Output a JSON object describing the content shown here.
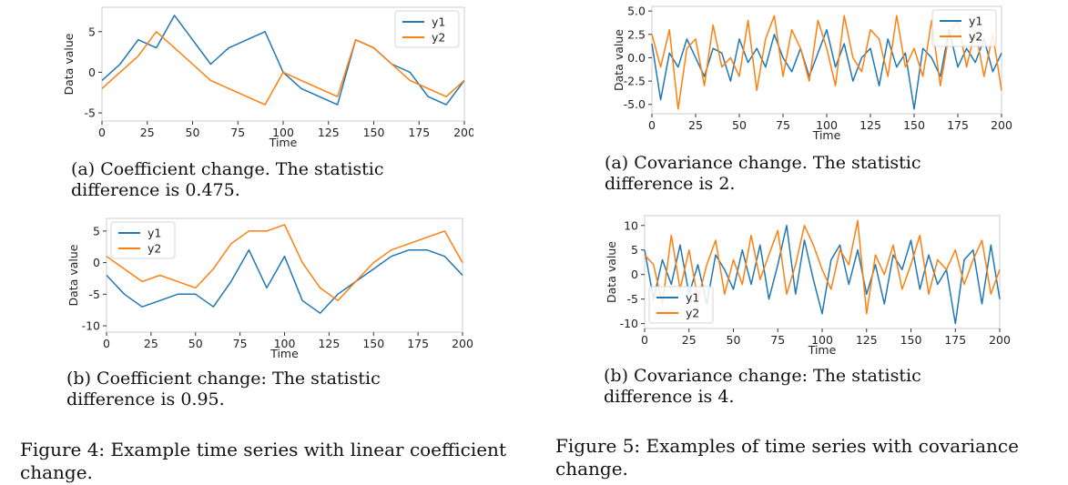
{
  "chart_data": [
    {
      "type": "line",
      "xlabel": "Time",
      "ylabel": "Data value",
      "xticks": [
        0,
        25,
        50,
        75,
        100,
        125,
        150,
        175,
        200
      ],
      "yticks": [
        -5,
        0,
        5
      ],
      "xlim": [
        0,
        200
      ],
      "ylim": [
        -6,
        8
      ],
      "legend_position": "top-right",
      "series": [
        {
          "name": "y1",
          "color": "#1f77b4",
          "x": [
            0,
            10,
            20,
            30,
            40,
            50,
            60,
            70,
            80,
            90,
            100,
            110,
            120,
            130,
            140,
            150,
            160,
            170,
            180,
            190,
            200
          ],
          "values": [
            -1,
            1,
            4,
            3,
            7,
            4,
            1,
            3,
            4,
            5,
            0,
            -2,
            -3,
            -4,
            4,
            3,
            1,
            0,
            -3,
            -4,
            -1
          ]
        },
        {
          "name": "y2",
          "color": "#ff7f0e",
          "x": [
            0,
            10,
            20,
            30,
            40,
            50,
            60,
            70,
            80,
            90,
            100,
            110,
            120,
            130,
            140,
            150,
            160,
            170,
            180,
            190,
            200
          ],
          "values": [
            -2,
            0,
            2,
            5,
            3,
            1,
            -1,
            -2,
            -3,
            -4,
            0,
            -1,
            -2,
            -3,
            4,
            3,
            1,
            -1,
            -2,
            -3,
            -1
          ]
        }
      ]
    },
    {
      "type": "line",
      "xlabel": "Time",
      "ylabel": "Data value",
      "xticks": [
        0,
        25,
        50,
        75,
        100,
        125,
        150,
        175,
        200
      ],
      "yticks": [
        -10,
        -5,
        0,
        5
      ],
      "xlim": [
        0,
        200
      ],
      "ylim": [
        -11,
        7
      ],
      "legend_position": "top-left",
      "series": [
        {
          "name": "y1",
          "color": "#1f77b4",
          "x": [
            0,
            10,
            20,
            30,
            40,
            50,
            60,
            70,
            80,
            90,
            100,
            110,
            120,
            130,
            140,
            150,
            160,
            170,
            180,
            190,
            200
          ],
          "values": [
            -2,
            -5,
            -7,
            -6,
            -5,
            -5,
            -7,
            -3,
            2,
            -4,
            1,
            -6,
            -8,
            -5,
            -3,
            -1,
            1,
            2,
            2,
            1,
            -2
          ]
        },
        {
          "name": "y2",
          "color": "#ff7f0e",
          "x": [
            0,
            10,
            20,
            30,
            40,
            50,
            60,
            70,
            80,
            90,
            100,
            110,
            120,
            130,
            140,
            150,
            160,
            170,
            180,
            190,
            200
          ],
          "values": [
            1,
            -1,
            -3,
            -2,
            -3,
            -4,
            -1,
            3,
            5,
            5,
            6,
            0,
            -4,
            -6,
            -3,
            0,
            2,
            3,
            4,
            5,
            0
          ]
        }
      ]
    },
    {
      "type": "line",
      "xlabel": "Time",
      "ylabel": "Data value",
      "xticks": [
        0,
        25,
        50,
        75,
        100,
        125,
        150,
        175,
        200
      ],
      "yticks": [
        "-5.0",
        "-2.5",
        "0.0",
        "2.5",
        "5.0"
      ],
      "xlim": [
        0,
        200
      ],
      "ylim": [
        -6,
        5.5
      ],
      "legend_position": "top-right",
      "series": [
        {
          "name": "y1",
          "color": "#1f77b4",
          "x": [
            0,
            5,
            10,
            15,
            20,
            25,
            30,
            35,
            40,
            45,
            50,
            55,
            60,
            65,
            70,
            75,
            80,
            85,
            90,
            95,
            100,
            105,
            110,
            115,
            120,
            125,
            130,
            135,
            140,
            145,
            150,
            155,
            160,
            165,
            170,
            175,
            180,
            185,
            190,
            195,
            200
          ],
          "values": [
            1.5,
            -4.5,
            0.5,
            -1,
            2,
            0,
            -2,
            1,
            0.5,
            -2.5,
            2,
            -0.5,
            1,
            -1,
            2.5,
            0,
            -1.5,
            1,
            -2,
            0.5,
            3,
            -1,
            1.5,
            -2.5,
            0,
            1,
            -3,
            2,
            -1,
            0.5,
            -5.5,
            1,
            0,
            -2,
            3,
            -1,
            1,
            -0.5,
            2,
            -1.5,
            0.5
          ]
        },
        {
          "name": "y2",
          "color": "#ff7f0e",
          "x": [
            0,
            5,
            10,
            15,
            20,
            25,
            30,
            35,
            40,
            45,
            50,
            55,
            60,
            65,
            70,
            75,
            80,
            85,
            90,
            95,
            100,
            105,
            110,
            115,
            120,
            125,
            130,
            135,
            140,
            145,
            150,
            155,
            160,
            165,
            170,
            175,
            180,
            185,
            190,
            195,
            200
          ],
          "values": [
            2.5,
            -1,
            3,
            -5.5,
            1,
            2,
            -3,
            3.5,
            -1,
            0,
            -2,
            4,
            -3.5,
            2,
            4.5,
            -2,
            3,
            1,
            -2.5,
            4,
            1,
            -3,
            4.5,
            0,
            -1.5,
            3,
            2,
            -2,
            4.5,
            -1,
            1,
            -2,
            4,
            -3,
            2.5,
            4,
            -1,
            3,
            -2,
            2.5,
            -3.5
          ]
        }
      ]
    },
    {
      "type": "line",
      "xlabel": "Time",
      "ylabel": "Data value",
      "xticks": [
        0,
        25,
        50,
        75,
        100,
        125,
        150,
        175,
        200
      ],
      "yticks": [
        -10,
        -5,
        0,
        5,
        10
      ],
      "xlim": [
        0,
        200
      ],
      "ylim": [
        -11,
        12
      ],
      "legend_position": "bottom-left",
      "series": [
        {
          "name": "y1",
          "color": "#1f77b4",
          "x": [
            0,
            5,
            10,
            15,
            20,
            25,
            30,
            35,
            40,
            45,
            50,
            55,
            60,
            65,
            70,
            75,
            80,
            85,
            90,
            95,
            100,
            105,
            110,
            115,
            120,
            125,
            130,
            135,
            140,
            145,
            150,
            155,
            160,
            165,
            170,
            175,
            180,
            185,
            190,
            195,
            200
          ],
          "values": [
            5,
            -5,
            3,
            -2,
            6,
            -4,
            2,
            -6,
            4,
            1,
            -3,
            5,
            -2,
            6,
            -5,
            2,
            10,
            -4,
            7,
            -1,
            -8,
            3,
            6,
            -2,
            5,
            -4,
            2,
            -6,
            4,
            1,
            7,
            -3,
            4,
            -2,
            1,
            -10,
            3,
            5,
            -6,
            6,
            -5
          ]
        },
        {
          "name": "y2",
          "color": "#ff7f0e",
          "x": [
            0,
            5,
            10,
            15,
            20,
            25,
            30,
            35,
            40,
            45,
            50,
            55,
            60,
            65,
            70,
            75,
            80,
            85,
            90,
            95,
            100,
            105,
            110,
            115,
            120,
            125,
            130,
            135,
            140,
            145,
            150,
            155,
            160,
            165,
            170,
            175,
            180,
            185,
            190,
            195,
            200
          ],
          "values": [
            4,
            2,
            -6,
            8,
            -3,
            5,
            -5,
            2,
            7,
            -4,
            3,
            -2,
            8,
            -1,
            4,
            9,
            -4,
            2,
            10,
            6,
            1,
            -3,
            5,
            2,
            11,
            -8,
            4,
            0,
            6,
            -3,
            2,
            8,
            -4,
            3,
            1,
            5,
            -2,
            3,
            7,
            -4,
            1
          ]
        }
      ]
    }
  ],
  "captions": {
    "fig4a": "(a) Coefficient change. The statistic difference is 0.475.",
    "fig4b": "(b) Coefficient change: The statistic difference is 0.95.",
    "fig4": "Figure 4: Example time series with linear coefficient change.",
    "fig5a": "(a) Covariance change. The statistic difference is 2.",
    "fig5b": "(b) Covariance change: The statistic difference is 4.",
    "fig5": "Figure 5: Examples of time series with covariance change."
  }
}
